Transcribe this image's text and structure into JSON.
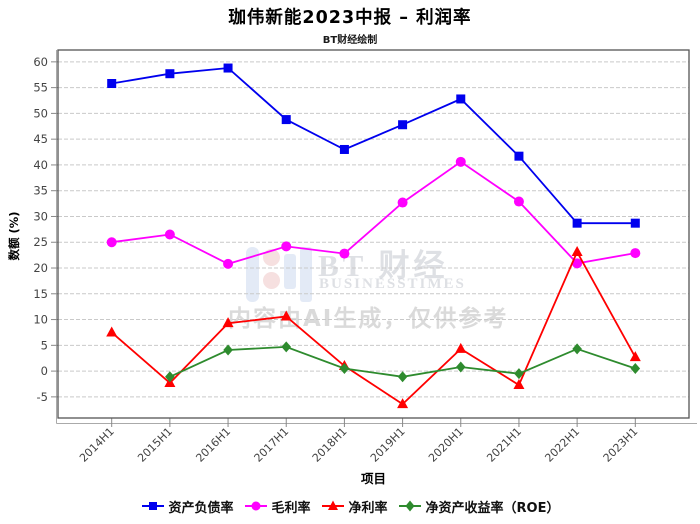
{
  "chart_data": {
    "type": "line",
    "title": "珈伟新能2023中报 – 利润率",
    "subtitle": "BT财经绘制",
    "xlabel": "项目",
    "ylabel": "数额 (%)",
    "categories": [
      "2014H1",
      "2015H1",
      "2016H1",
      "2017H1",
      "2018H1",
      "2019H1",
      "2020H1",
      "2021H1",
      "2022H1",
      "2023H1"
    ],
    "series": [
      {
        "name": "资产负债率",
        "color": "#0000ee",
        "marker": "square",
        "values": [
          55.8,
          57.7,
          58.8,
          48.8,
          43.0,
          47.8,
          52.8,
          41.7,
          28.7,
          28.7
        ]
      },
      {
        "name": "毛利率",
        "color": "#ff00ff",
        "marker": "circle",
        "values": [
          25.0,
          26.5,
          20.8,
          24.2,
          22.8,
          32.7,
          40.6,
          32.9,
          20.9,
          22.9
        ]
      },
      {
        "name": "净利率",
        "color": "#ff0000",
        "marker": "triangle",
        "values": [
          7.5,
          -2.3,
          9.3,
          10.6,
          1.0,
          -6.4,
          4.3,
          -2.7,
          23.1,
          2.7
        ]
      },
      {
        "name": "净资产收益率（ROE）",
        "color": "#2e8b2e",
        "marker": "diamond",
        "values": [
          null,
          -1.1,
          4.1,
          4.7,
          0.5,
          -1.1,
          0.8,
          -0.5,
          4.3,
          0.5
        ]
      }
    ],
    "yticks": [
      -5,
      0,
      5,
      10,
      15,
      20,
      25,
      30,
      35,
      40,
      45,
      50,
      55,
      60
    ],
    "ylim": [
      -9.1,
      62.3
    ],
    "grid": true,
    "legend_position": "bottom"
  },
  "watermark": {
    "logo_text": "BT 财经",
    "logo_subtext": "BUSINESSTIMES",
    "ai_note": "内容由AI生成，仅供参考"
  }
}
